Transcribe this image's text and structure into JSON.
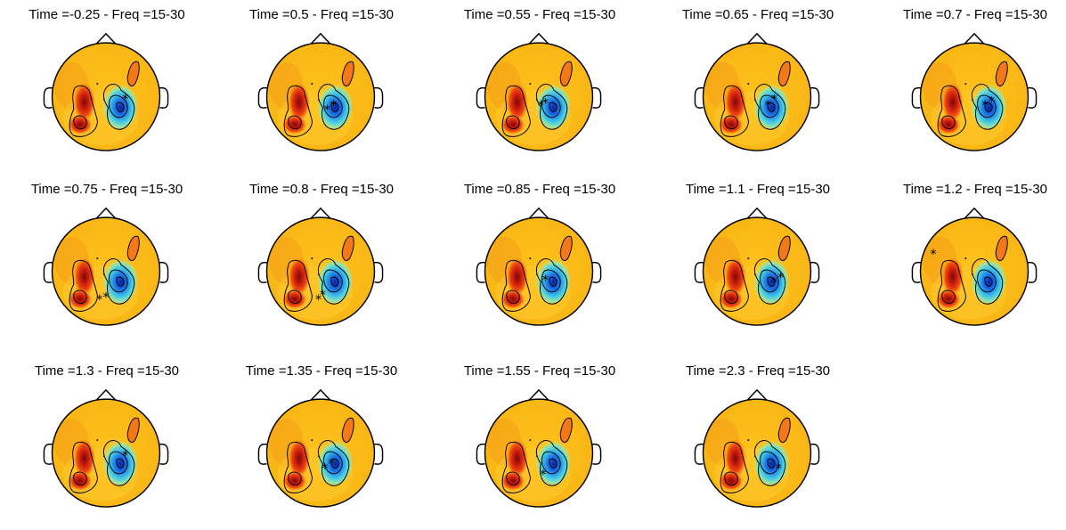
{
  "figure": {
    "panels": [
      {
        "title": "Time =-0.25 - Freq =15-30",
        "markers": [
          [
            0.18,
            0.02
          ]
        ]
      },
      {
        "title": "Time =0.5 - Freq =15-30",
        "markers": [
          [
            0.06,
            0.12
          ],
          [
            0.12,
            0.08
          ]
        ]
      },
      {
        "title": "Time =0.55 - Freq =15-30",
        "markers": [
          [
            0.02,
            0.08
          ],
          [
            0.06,
            0.06
          ]
        ]
      },
      {
        "title": "Time =0.65 - Freq =15-30",
        "markers": [
          [
            0.1,
            0.08
          ],
          [
            0.16,
            0.02
          ]
        ]
      },
      {
        "title": "Time =0.7 - Freq =15-30",
        "markers": [
          [
            0.1,
            0.08
          ],
          [
            0.16,
            0.04
          ]
        ]
      },
      {
        "title": "Time =0.75 - Freq =15-30",
        "markers": [
          [
            -0.06,
            0.26
          ],
          [
            0.0,
            0.24
          ]
        ]
      },
      {
        "title": "Time =0.8 - Freq =15-30",
        "markers": [
          [
            -0.02,
            0.26
          ],
          [
            0.02,
            0.22
          ]
        ]
      },
      {
        "title": "Time =0.85 - Freq =15-30",
        "markers": [
          [
            0.06,
            0.08
          ]
        ]
      },
      {
        "title": "Time =1.1 - Freq =15-30",
        "markers": [
          [
            0.16,
            0.1
          ],
          [
            0.22,
            0.06
          ]
        ]
      },
      {
        "title": "Time =1.2 - Freq =15-30",
        "markers": [
          [
            -0.38,
            -0.16
          ]
        ]
      },
      {
        "title": "Time =1.3 - Freq =15-30",
        "markers": [
          [
            0.18,
            0.02
          ]
        ]
      },
      {
        "title": "Time =1.35 - Freq =15-30",
        "markers": [
          [
            0.04,
            0.14
          ],
          [
            0.1,
            0.1
          ]
        ]
      },
      {
        "title": "Time =1.55 - Freq =15-30",
        "markers": [
          [
            0.04,
            0.2
          ]
        ]
      },
      {
        "title": "Time =2.3 - Freq =15-30",
        "markers": [
          [
            0.2,
            0.14
          ]
        ]
      }
    ]
  }
}
